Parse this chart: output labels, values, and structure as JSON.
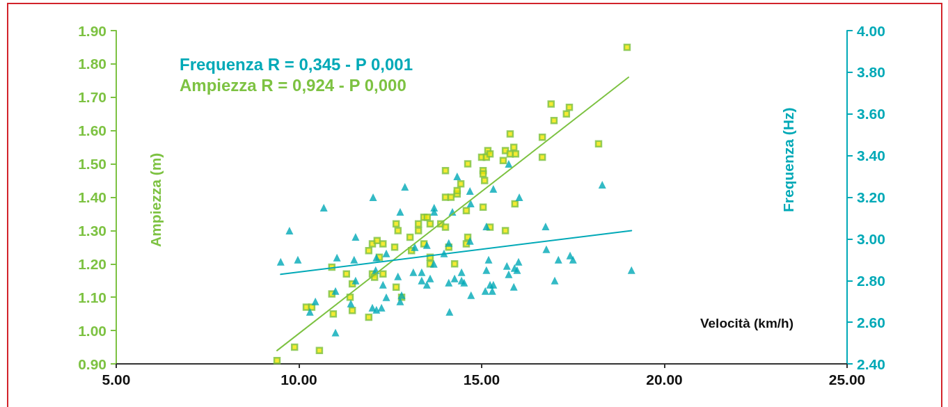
{
  "chart_data": {
    "type": "scatter",
    "xlabel": "Velocità (km/h)",
    "ylabel": "Ampiezza (m)",
    "y2label": "Frequenza (Hz)",
    "annotations": [
      "Frequenza R = 0,345 - P 0,001",
      "Ampiezza R = 0,924 - P 0,000"
    ],
    "xlim": [
      5,
      25
    ],
    "xticks": [
      {
        "value": 5,
        "label": "5.00"
      },
      {
        "value": 10,
        "label": "10.00"
      },
      {
        "value": 15,
        "label": "15.00"
      },
      {
        "value": 20,
        "label": "20.00"
      },
      {
        "value": 25,
        "label": "25.00"
      }
    ],
    "ylim": [
      0.9,
      1.9
    ],
    "yticks": [
      {
        "value": 0.9,
        "label": "0.90"
      },
      {
        "value": 1.0,
        "label": "1.00"
      },
      {
        "value": 1.1,
        "label": "1.10"
      },
      {
        "value": 1.2,
        "label": "1.20"
      },
      {
        "value": 1.3,
        "label": "1.30"
      },
      {
        "value": 1.4,
        "label": "1.40"
      },
      {
        "value": 1.5,
        "label": "1.50"
      },
      {
        "value": 1.6,
        "label": "1.60"
      },
      {
        "value": 1.7,
        "label": "1.70"
      },
      {
        "value": 1.8,
        "label": "1.80"
      },
      {
        "value": 1.9,
        "label": "1.90"
      }
    ],
    "y2lim": [
      2.4,
      4.0
    ],
    "y2ticks": [
      {
        "value": 2.4,
        "label": "2.40"
      },
      {
        "value": 2.6,
        "label": "2.60"
      },
      {
        "value": 2.8,
        "label": "2.80"
      },
      {
        "value": 3.0,
        "label": "3.00"
      },
      {
        "value": 3.2,
        "label": "3.20"
      },
      {
        "value": 3.4,
        "label": "3.40"
      },
      {
        "value": 3.6,
        "label": "3.60"
      },
      {
        "value": 3.8,
        "label": "3.80"
      },
      {
        "value": 4.0,
        "label": "4.00"
      }
    ],
    "grid": false,
    "series": [
      {
        "marker": "square",
        "color": "#7dc242",
        "x": [
          9.4,
          9.88,
          10.56,
          10.2,
          10.35,
          10.9,
          10.94,
          10.9,
          11.3,
          11.46,
          11.4,
          11.46,
          11.91,
          12.01,
          12.07,
          12.3,
          12.2,
          11.91,
          12.01,
          12.14,
          12.3,
          12.62,
          12.66,
          12.81,
          12.66,
          12.71,
          13.04,
          13.08,
          13.27,
          13.27,
          13.42,
          13.51,
          13.59,
          13.88,
          14.01,
          13.42,
          14.1,
          13.59,
          13.59,
          14.26,
          14.58,
          14.62,
          14.58,
          14.01,
          14.16,
          14.33,
          14.33,
          14.43,
          14.01,
          14.62,
          15.04,
          15.04,
          15.08,
          15.0,
          15.13,
          15.17,
          15.23,
          15.59,
          15.65,
          15.88,
          15.78,
          15.93,
          15.78,
          16.66,
          16.66,
          16.9,
          16.98,
          17.4,
          17.32,
          18.2,
          18.98,
          15.91,
          15.04,
          15.23,
          15.65
        ],
        "values": [
          0.91,
          0.95,
          0.94,
          1.07,
          1.07,
          1.11,
          1.05,
          1.19,
          1.17,
          1.14,
          1.1,
          1.06,
          1.04,
          1.17,
          1.16,
          1.17,
          1.22,
          1.24,
          1.26,
          1.27,
          1.26,
          1.25,
          1.13,
          1.1,
          1.32,
          1.3,
          1.28,
          1.24,
          1.32,
          1.3,
          1.34,
          1.34,
          1.32,
          1.32,
          1.31,
          1.26,
          1.25,
          1.22,
          1.2,
          1.2,
          1.36,
          1.28,
          1.26,
          1.4,
          1.4,
          1.41,
          1.42,
          1.44,
          1.48,
          1.5,
          1.48,
          1.47,
          1.45,
          1.52,
          1.52,
          1.54,
          1.53,
          1.51,
          1.54,
          1.55,
          1.53,
          1.53,
          1.59,
          1.58,
          1.52,
          1.68,
          1.63,
          1.67,
          1.65,
          1.56,
          1.85,
          1.38,
          1.37,
          1.31,
          1.3
        ]
      },
      {
        "marker": "triangle",
        "color": "#00a9b7",
        "axis": "y2",
        "x": [
          9.5,
          9.74,
          9.97,
          10.68,
          12.03,
          10.45,
          10.3,
          11.0,
          11.0,
          11.04,
          11.51,
          11.55,
          11.55,
          11.42,
          12.01,
          12.12,
          12.26,
          12.12,
          12.39,
          12.1,
          12.3,
          12.39,
          12.71,
          12.77,
          12.77,
          12.81,
          12.9,
          13.17,
          13.5,
          13.13,
          13.36,
          13.36,
          13.59,
          13.5,
          13.69,
          13.7,
          13.7,
          13.97,
          14.1,
          14.2,
          14.1,
          14.26,
          14.45,
          14.45,
          14.52,
          14.12,
          14.7,
          14.68,
          14.71,
          14.33,
          14.68,
          15.32,
          15.74,
          16.03,
          15.13,
          16.75,
          16.77,
          15.19,
          17.1,
          17.42,
          17.5,
          16.01,
          15.69,
          15.9,
          15.97,
          15.13,
          15.74,
          15.23,
          15.32,
          17.0,
          19.1,
          15.1,
          15.29,
          15.88,
          18.3
        ],
        "values": [
          2.89,
          3.04,
          2.9,
          3.15,
          3.2,
          2.7,
          2.65,
          2.75,
          2.55,
          2.91,
          2.9,
          3.01,
          2.8,
          2.69,
          2.67,
          2.66,
          2.67,
          2.91,
          2.93,
          2.85,
          2.78,
          2.72,
          2.82,
          3.13,
          2.7,
          2.73,
          3.25,
          2.96,
          2.97,
          2.84,
          2.84,
          2.8,
          2.81,
          2.78,
          2.88,
          3.15,
          3.13,
          2.93,
          2.98,
          3.13,
          2.79,
          2.81,
          2.84,
          2.8,
          2.79,
          2.65,
          3.17,
          2.99,
          2.73,
          3.3,
          3.23,
          3.24,
          3.36,
          3.2,
          3.06,
          3.06,
          2.95,
          2.9,
          2.9,
          2.92,
          2.9,
          2.89,
          2.87,
          2.86,
          2.85,
          2.85,
          2.83,
          2.78,
          2.78,
          2.8,
          2.85,
          2.75,
          2.75,
          2.77,
          3.26
        ]
      },
      {
        "type": "line",
        "marker": "none",
        "color": "#7dc242",
        "x": [
          9.4,
          19.02
        ],
        "values": [
          0.94,
          1.76
        ]
      },
      {
        "type": "line",
        "marker": "none",
        "color": "#00a9b7",
        "axis": "y2",
        "x": [
          9.5,
          19.1
        ],
        "values": [
          2.83,
          3.04
        ]
      }
    ]
  }
}
